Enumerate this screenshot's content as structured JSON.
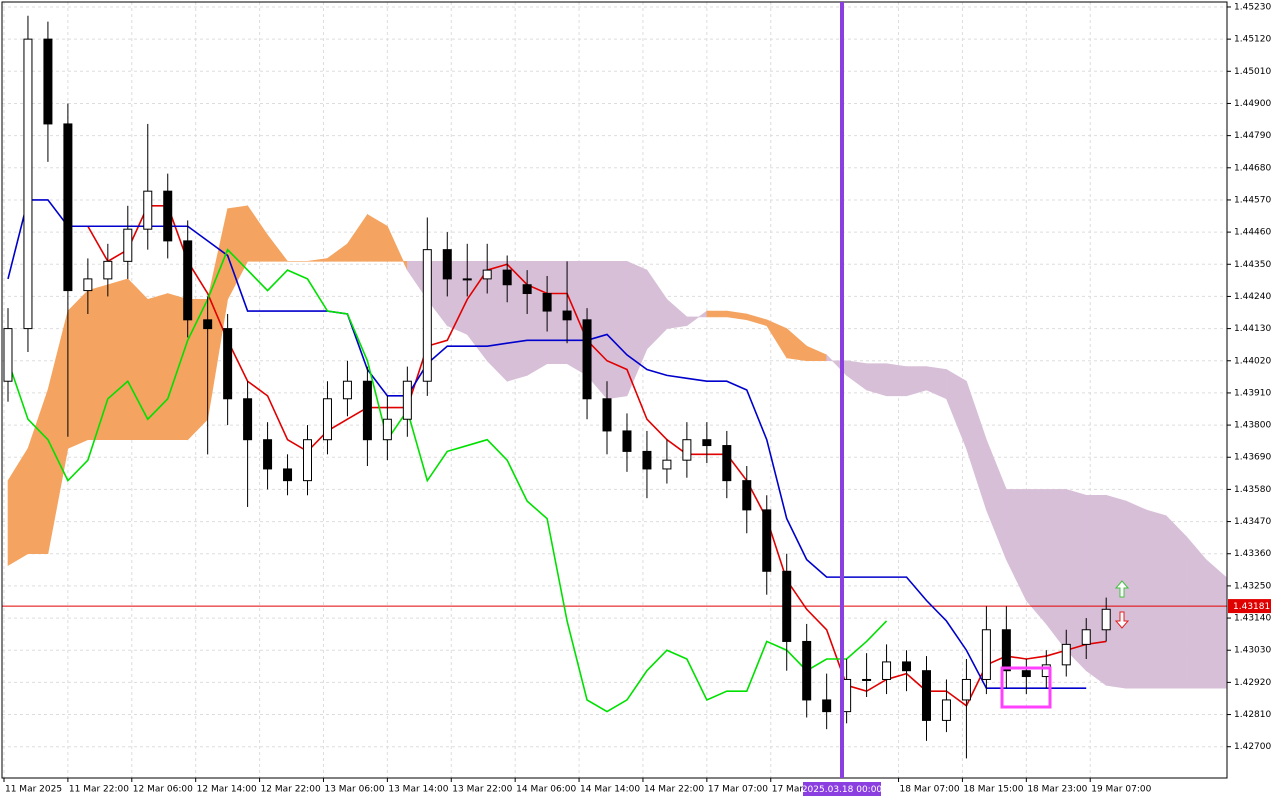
{
  "chart_data": {
    "type": "candlestick",
    "x": [
      0,
      1,
      2,
      3,
      4,
      5,
      6,
      7,
      8,
      9,
      10,
      11,
      12,
      13,
      14,
      15,
      16,
      17,
      18,
      19,
      20,
      21,
      22,
      23,
      24,
      25,
      26,
      27,
      28,
      29,
      30,
      31,
      32,
      33,
      34,
      35,
      36,
      37,
      38,
      39,
      40,
      41,
      42,
      43,
      44,
      45,
      46,
      47,
      48,
      49,
      50,
      51,
      52,
      53,
      54,
      55,
      56,
      57,
      58,
      59,
      60,
      61
    ],
    "xlim": [
      -0.3,
      61.05
    ],
    "ylim": [
      1.42593,
      1.45247
    ],
    "open": [
      1.4395,
      1.4413,
      1.4512,
      1.4483,
      1.4426,
      1.443,
      1.4436,
      1.4447,
      1.446,
      1.4443,
      1.4416,
      1.4413,
      1.4389,
      1.4375,
      1.4365,
      1.4361,
      1.4375,
      1.4389,
      1.4395,
      1.4375,
      1.4382,
      1.4395,
      1.444,
      1.443,
      1.443,
      1.4433,
      1.4428,
      1.4425,
      1.4419,
      1.4416,
      1.4389,
      1.4378,
      1.4371,
      1.4365,
      1.4368,
      1.4375,
      1.4373,
      1.4361,
      1.4351,
      1.433,
      1.4306,
      1.4286,
      1.4282,
      1.4293,
      1.4293,
      1.4299,
      1.4296,
      1.4279,
      1.4286,
      1.4293,
      1.431,
      1.4296,
      1.4294,
      1.4298,
      1.4305,
      1.431,
      null,
      null,
      null,
      null,
      null,
      null
    ],
    "high": [
      1.442,
      1.452,
      1.4518,
      1.449,
      1.4437,
      1.4442,
      1.4455,
      1.4483,
      1.4466,
      1.445,
      1.4424,
      1.4418,
      1.4395,
      1.4381,
      1.437,
      1.438,
      1.4395,
      1.4402,
      1.44,
      1.439,
      1.44,
      1.4451,
      1.4446,
      1.4442,
      1.4442,
      1.4438,
      1.4433,
      1.4431,
      1.4436,
      1.442,
      1.4395,
      1.4384,
      1.4378,
      1.4375,
      1.4381,
      1.4381,
      1.4378,
      1.4366,
      1.4356,
      1.4336,
      1.4312,
      1.4295,
      1.43,
      1.4302,
      1.4305,
      1.4303,
      1.4301,
      1.4293,
      1.43,
      1.4318,
      1.4318,
      1.43,
      1.4303,
      1.431,
      1.4314,
      1.4321,
      null,
      null,
      null,
      null,
      null,
      null
    ],
    "low": [
      1.4388,
      1.4405,
      1.447,
      1.4376,
      1.4418,
      1.4424,
      1.443,
      1.444,
      1.4437,
      1.441,
      1.437,
      1.438,
      1.4352,
      1.4358,
      1.4356,
      1.4356,
      1.437,
      1.4383,
      1.4366,
      1.4368,
      1.4376,
      1.439,
      1.4424,
      1.4424,
      1.4425,
      1.4422,
      1.4418,
      1.4412,
      1.4408,
      1.4382,
      1.437,
      1.4364,
      1.4355,
      1.436,
      1.4362,
      1.4367,
      1.4355,
      1.4343,
      1.4322,
      1.4296,
      1.428,
      1.4276,
      1.4278,
      1.4287,
      1.4288,
      1.4289,
      1.4272,
      1.4275,
      1.4266,
      1.4288,
      1.429,
      1.4288,
      1.429,
      1.4294,
      1.43,
      1.4306,
      null,
      null,
      null,
      null,
      null,
      null
    ],
    "close": [
      1.4413,
      1.4512,
      1.4483,
      1.4426,
      1.443,
      1.4436,
      1.4447,
      1.446,
      1.4443,
      1.4416,
      1.4413,
      1.4389,
      1.4375,
      1.4365,
      1.4361,
      1.4375,
      1.4389,
      1.4395,
      1.4375,
      1.4382,
      1.4395,
      1.444,
      1.443,
      1.443,
      1.4433,
      1.4428,
      1.4425,
      1.4419,
      1.4416,
      1.4389,
      1.4378,
      1.4371,
      1.4365,
      1.4368,
      1.4375,
      1.4373,
      1.4361,
      1.4351,
      1.433,
      1.4306,
      1.4286,
      1.4282,
      1.4293,
      1.4293,
      1.4299,
      1.4296,
      1.4279,
      1.4286,
      1.4293,
      1.431,
      1.4296,
      1.4294,
      1.4298,
      1.4305,
      1.431,
      1.4317,
      null,
      null,
      null,
      null,
      null,
      null
    ],
    "up_color": "#ffffff",
    "down_color": "#000000",
    "series": [
      {
        "color": "#e00000",
        "values": [
          null,
          null,
          null,
          null,
          1.4448,
          1.4436,
          1.444,
          1.4455,
          1.4455,
          1.4436,
          1.4425,
          1.4409,
          1.4395,
          1.439,
          1.4375,
          1.4371,
          1.4378,
          1.4382,
          1.4386,
          1.4386,
          1.4386,
          1.4407,
          1.4409,
          1.4423,
          1.4433,
          1.4435,
          1.4428,
          1.4425,
          1.4425,
          1.4409,
          1.4402,
          1.4399,
          1.4382,
          1.4375,
          1.437,
          1.437,
          1.437,
          1.4361,
          1.4348,
          1.4327,
          1.4317,
          1.431,
          1.4291,
          1.4289,
          1.4293,
          1.4295,
          1.4289,
          1.4289,
          1.4284,
          1.4298,
          1.4301,
          1.43,
          1.4301,
          1.4303,
          1.4305,
          1.4306,
          null,
          null,
          null,
          null,
          null,
          null
        ]
      },
      {
        "color": "#0000cc",
        "values": [
          1.443,
          1.4457,
          1.4457,
          1.4448,
          1.4448,
          1.4448,
          1.4448,
          1.4448,
          1.4448,
          1.4448,
          1.4443,
          1.4438,
          1.4419,
          1.4419,
          1.4419,
          1.4419,
          1.4419,
          1.4418,
          1.4399,
          1.439,
          1.439,
          1.4401,
          1.4407,
          1.4407,
          1.4407,
          1.4408,
          1.4409,
          1.4409,
          1.4409,
          1.4409,
          1.4411,
          1.4404,
          1.4399,
          1.4397,
          1.4396,
          1.4395,
          1.4395,
          1.4392,
          1.4375,
          1.4348,
          1.4334,
          1.4328,
          1.4328,
          1.4328,
          1.4328,
          1.4328,
          1.432,
          1.4313,
          1.4303,
          1.429,
          1.429,
          1.429,
          1.429,
          1.429,
          1.429,
          null,
          null,
          null,
          null,
          null,
          null,
          null
        ]
      },
      {
        "color": "#00e000",
        "values": [
          1.4402,
          1.4382,
          1.4375,
          1.4361,
          1.4368,
          1.4389,
          1.4395,
          1.4382,
          1.4389,
          1.4409,
          1.4423,
          1.444,
          1.4433,
          1.4426,
          1.4433,
          1.443,
          1.4419,
          1.4418,
          1.4402,
          1.4375,
          1.4385,
          1.4361,
          1.4371,
          1.4373,
          1.4375,
          1.4368,
          1.4354,
          1.4348,
          1.4313,
          1.4286,
          1.4282,
          1.4286,
          1.4296,
          1.4303,
          1.43,
          1.4286,
          1.4289,
          1.4289,
          1.4306,
          1.4303,
          1.4296,
          1.43,
          1.43,
          1.4306,
          1.4313,
          null,
          null,
          null,
          null,
          null,
          null,
          null,
          null,
          null,
          null,
          null,
          null,
          null,
          null,
          null,
          null,
          null
        ]
      }
    ],
    "cloud": {
      "bull_color": "#f4a460",
      "bear_color": "#d8bfd8",
      "span_a": [
        1.4361,
        1.4372,
        1.4392,
        1.4419,
        1.4426,
        1.4428,
        1.443,
        1.4423,
        1.4425,
        1.4423,
        1.4423,
        1.4454,
        1.4455,
        1.4445,
        1.4436,
        1.4436,
        1.4437,
        1.4442,
        1.4452,
        1.4448,
        1.4433,
        1.4423,
        1.4414,
        1.4411,
        1.4402,
        1.4395,
        1.4397,
        1.4401,
        1.4401,
        1.4397,
        1.4389,
        1.439,
        1.4406,
        1.4413,
        1.4414,
        1.4419,
        1.4419,
        1.4418,
        1.4416,
        1.4413,
        1.4407,
        1.4404,
        1.4397,
        1.4392,
        1.439,
        1.439,
        1.4392,
        1.4389,
        1.4372,
        1.4351,
        1.4334,
        1.432,
        1.4312,
        1.4303,
        1.4296,
        1.4291,
        1.429,
        1.429,
        1.429,
        1.429,
        1.429,
        1.429
      ],
      "span_b": [
        1.4332,
        1.4336,
        1.4336,
        1.4372,
        1.4375,
        1.4375,
        1.4375,
        1.4375,
        1.4375,
        1.4375,
        1.4382,
        1.4423,
        1.4436,
        1.4436,
        1.4436,
        1.4436,
        1.4436,
        1.4436,
        1.4436,
        1.4436,
        1.4436,
        1.4436,
        1.4436,
        1.4436,
        1.4436,
        1.4436,
        1.4436,
        1.4436,
        1.4436,
        1.4436,
        1.4436,
        1.4436,
        1.4433,
        1.4423,
        1.4417,
        1.4417,
        1.4417,
        1.4416,
        1.4414,
        1.4403,
        1.4402,
        1.4402,
        1.4402,
        1.4401,
        1.4401,
        1.44,
        1.44,
        1.4399,
        1.4395,
        1.4375,
        1.4358,
        1.4358,
        1.4358,
        1.4358,
        1.4356,
        1.4356,
        1.4354,
        1.4351,
        1.4349,
        1.4342,
        1.4334,
        1.4328
      ]
    },
    "bid": {
      "value": 1.43181,
      "label": "1.43181",
      "color": "#e00000"
    },
    "vline_label": "2025.03.18 00:00",
    "grid": true,
    "yticks": [
      {
        "value": 1.4523,
        "label": "1.45230"
      },
      {
        "value": 1.4512,
        "label": "1.45120"
      },
      {
        "value": 1.4501,
        "label": "1.45010"
      },
      {
        "value": 1.449,
        "label": "1.44900"
      },
      {
        "value": 1.4479,
        "label": "1.44790"
      },
      {
        "value": 1.4468,
        "label": "1.44680"
      },
      {
        "value": 1.4457,
        "label": "1.44570"
      },
      {
        "value": 1.4446,
        "label": "1.44460"
      },
      {
        "value": 1.4435,
        "label": "1.44350"
      },
      {
        "value": 1.4424,
        "label": "1.44240"
      },
      {
        "value": 1.4413,
        "label": "1.44130"
      },
      {
        "value": 1.4402,
        "label": "1.44020"
      },
      {
        "value": 1.4391,
        "label": "1.43910"
      },
      {
        "value": 1.438,
        "label": "1.43800"
      },
      {
        "value": 1.4369,
        "label": "1.43690"
      },
      {
        "value": 1.4358,
        "label": "1.43580"
      },
      {
        "value": 1.4347,
        "label": "1.43470"
      },
      {
        "value": 1.4336,
        "label": "1.43360"
      },
      {
        "value": 1.4325,
        "label": "1.43250"
      },
      {
        "value": 1.4314,
        "label": "1.43140"
      },
      {
        "value": 1.4303,
        "label": "1.43030"
      },
      {
        "value": 1.4292,
        "label": "1.42920"
      },
      {
        "value": 1.4281,
        "label": "1.42810"
      },
      {
        "value": 1.427,
        "label": "1.42700"
      }
    ],
    "xticks": [
      {
        "value": -0.2,
        "label": "11 Mar 2025"
      },
      {
        "value": 3,
        "label": "11 Mar 22:00"
      },
      {
        "value": 6.2,
        "label": "12 Mar 06:00"
      },
      {
        "value": 9.4,
        "label": "12 Mar 14:00"
      },
      {
        "value": 12.6,
        "label": "12 Mar 22:00"
      },
      {
        "value": 15.8,
        "label": "13 Mar 06:00"
      },
      {
        "value": 19,
        "label": "13 Mar 14:00"
      },
      {
        "value": 22.2,
        "label": "13 Mar 22:00"
      },
      {
        "value": 25.4,
        "label": "14 Mar 06:00"
      },
      {
        "value": 28.6,
        "label": "14 Mar 14:00"
      },
      {
        "value": 31.8,
        "label": "14 Mar 22:00"
      },
      {
        "value": 35,
        "label": "17 Mar 07:00"
      },
      {
        "value": 38.2,
        "label": "17 Mar 15:00"
      },
      {
        "value": 44.6,
        "label": "18 Mar 07:00"
      },
      {
        "value": 47.8,
        "label": "18 Mar 15:00"
      },
      {
        "value": 51,
        "label": "18 Mar 23:00"
      },
      {
        "value": 54.2,
        "label": "19 Mar 07:00"
      }
    ]
  }
}
